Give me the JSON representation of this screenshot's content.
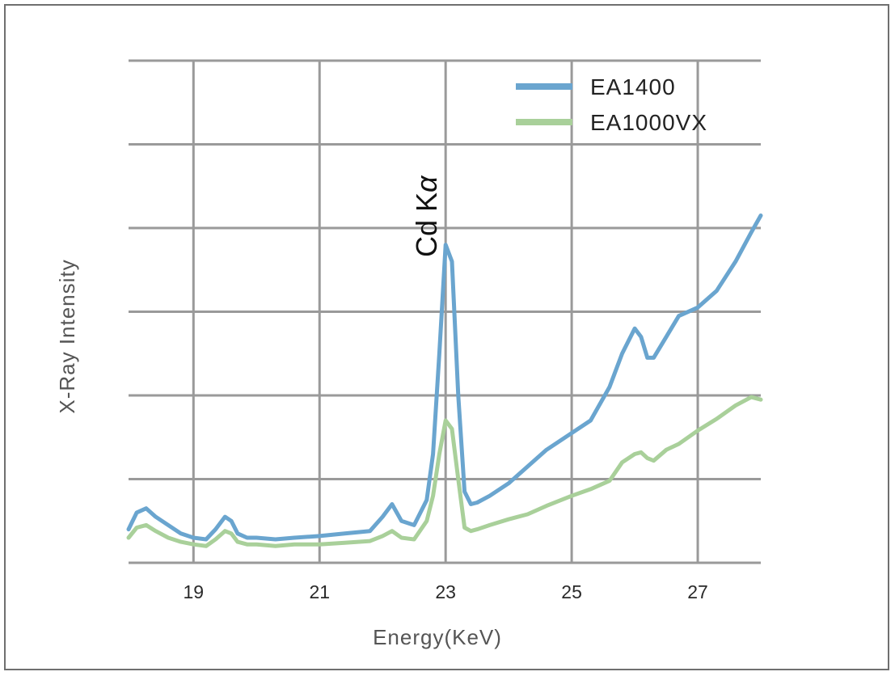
{
  "chart_data": {
    "type": "line",
    "title": "",
    "xlabel": "Energy(KeV)",
    "ylabel": "X-Ray Intensity",
    "xlim": [
      17.97,
      28
    ],
    "ylim": [
      0,
      6
    ],
    "x_ticks": [
      "19",
      "21",
      "23",
      "25",
      "27"
    ],
    "grid": true,
    "legend_position": "top-right",
    "annotation": {
      "text": "Cd K",
      "symbol": "α",
      "x": 23.0
    },
    "colors": {
      "EA1400": "#6aa5cf",
      "EA1000VX": "#a9d09a",
      "grid": "#9a9a9a"
    },
    "series": [
      {
        "name": "EA1400",
        "x": [
          17.97,
          18.1,
          18.25,
          18.4,
          18.6,
          18.8,
          19.0,
          19.2,
          19.35,
          19.5,
          19.6,
          19.7,
          19.85,
          20.0,
          20.3,
          20.6,
          21.0,
          21.4,
          21.8,
          22.0,
          22.15,
          22.3,
          22.5,
          22.7,
          22.8,
          22.9,
          23.0,
          23.1,
          23.2,
          23.3,
          23.4,
          23.5,
          23.7,
          24.0,
          24.3,
          24.6,
          25.0,
          25.3,
          25.6,
          25.8,
          26.0,
          26.1,
          26.2,
          26.3,
          26.5,
          26.7,
          27.0,
          27.3,
          27.6,
          27.85,
          28.0
        ],
        "y": [
          0.4,
          0.6,
          0.65,
          0.55,
          0.45,
          0.35,
          0.3,
          0.28,
          0.4,
          0.55,
          0.5,
          0.35,
          0.3,
          0.3,
          0.28,
          0.3,
          0.32,
          0.35,
          0.38,
          0.55,
          0.7,
          0.5,
          0.45,
          0.75,
          1.3,
          2.5,
          3.8,
          3.6,
          2.0,
          0.85,
          0.7,
          0.72,
          0.8,
          0.95,
          1.15,
          1.35,
          1.55,
          1.7,
          2.1,
          2.5,
          2.8,
          2.7,
          2.45,
          2.45,
          2.7,
          2.95,
          3.05,
          3.25,
          3.6,
          3.95,
          4.15
        ]
      },
      {
        "name": "EA1000VX",
        "x": [
          17.97,
          18.1,
          18.25,
          18.4,
          18.6,
          18.8,
          19.0,
          19.2,
          19.35,
          19.5,
          19.6,
          19.7,
          19.85,
          20.0,
          20.3,
          20.6,
          21.0,
          21.4,
          21.8,
          22.0,
          22.15,
          22.3,
          22.5,
          22.7,
          22.8,
          22.9,
          23.0,
          23.1,
          23.2,
          23.3,
          23.4,
          23.5,
          23.7,
          24.0,
          24.3,
          24.6,
          25.0,
          25.3,
          25.6,
          25.8,
          26.0,
          26.1,
          26.2,
          26.3,
          26.5,
          26.7,
          27.0,
          27.3,
          27.6,
          27.85,
          28.0
        ],
        "y": [
          0.3,
          0.42,
          0.45,
          0.38,
          0.3,
          0.25,
          0.22,
          0.2,
          0.28,
          0.38,
          0.35,
          0.25,
          0.22,
          0.22,
          0.2,
          0.22,
          0.22,
          0.24,
          0.26,
          0.32,
          0.38,
          0.3,
          0.28,
          0.5,
          0.8,
          1.3,
          1.7,
          1.6,
          1.0,
          0.42,
          0.38,
          0.4,
          0.45,
          0.52,
          0.58,
          0.68,
          0.8,
          0.88,
          0.98,
          1.2,
          1.3,
          1.32,
          1.25,
          1.22,
          1.35,
          1.42,
          1.58,
          1.72,
          1.88,
          1.98,
          1.95
        ]
      }
    ]
  }
}
